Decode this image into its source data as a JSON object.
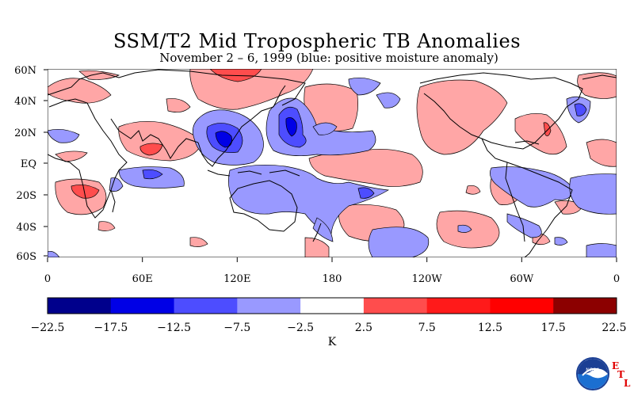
{
  "title": "SSM/T2 Mid Tropospheric TB Anomalies",
  "subtitle": "November 2 – 6, 1999 (blue: positive moisture anomaly)",
  "lat_labels": [
    "60N",
    "40N",
    "20N",
    "EQ",
    "20S",
    "40S",
    "60S"
  ],
  "lon_labels": [
    "0",
    "60E",
    "120E",
    "180",
    "120W",
    "60W",
    "0"
  ],
  "colorbar": {
    "colors": [
      "#00008c",
      "#0000e6",
      "#4d4dff",
      "#9999ff",
      "#ffffff",
      "#ffa6a6",
      "#ff4d4d",
      "#ff1a1a",
      "#ff0000",
      "#8c0000"
    ],
    "labels": [
      "−22.5",
      "−17.5",
      "−12.5",
      "−7.5",
      "−2.5",
      "2.5",
      "7.5",
      "12.5",
      "17.5",
      "22.5"
    ],
    "unit": "K"
  },
  "logo": {
    "noaa_text": "NOAA",
    "etl_letters": [
      "E",
      "T",
      "L"
    ],
    "etl_color": "#e00000"
  }
}
